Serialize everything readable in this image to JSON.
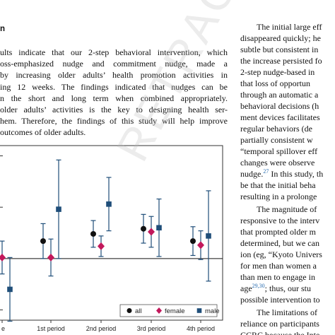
{
  "section_heading": "n",
  "left_paragraph": [
    "ults indicate that our 2-step behavioral intervention, which",
    "oss-emphasized nudge and commitment nudge, made a",
    "by increasing older adults’ health promotion activities in",
    "ing 12 weeks. The findings indicated that nudges can be",
    "n the short and long term when combined appropriately.",
    "older adults’ activities is the key to designing health ser-",
    "hem. Therefore, the findings of this study will help improve",
    "outcomes of older adults."
  ],
  "right_column": [
    {
      "t": "The initial large eff",
      "indent": true
    },
    {
      "t": "disappeared quickly; he"
    },
    {
      "t": "subtle but consistent in"
    },
    {
      "t": "the increase persisted fo"
    },
    {
      "t": "2-step nudge-based in"
    },
    {
      "t": "that loss of opportun"
    },
    {
      "t": "through an automatic a"
    },
    {
      "t": "behavioral decisions (h"
    },
    {
      "t": "ment devices facilitates"
    },
    {
      "t": "regular behaviors (de"
    },
    {
      "t": "partially consistent w"
    },
    {
      "t": "“temporal spillover eff"
    },
    {
      "t": "changes were observe"
    },
    {
      "t": "nudge.",
      "ref": "27",
      "after": " In this study, th"
    },
    {
      "t": "be that the initial beha"
    },
    {
      "t": "resulting in a prolonge"
    },
    {
      "t": "The magnitude of",
      "indent": true,
      "gap": true
    },
    {
      "t": "responsive to the interv"
    },
    {
      "t": "that prompted older m"
    },
    {
      "t": "determined, but we can"
    },
    {
      "t": "ion (eg, “Kyoto Univers"
    },
    {
      "t": "for men than women a"
    },
    {
      "t": "than men to engage in"
    },
    {
      "t": "age",
      "ref": "29,30",
      "after": "; thus, our stu"
    },
    {
      "t": "possible intervention to"
    },
    {
      "t": "The limitations of",
      "indent": true,
      "gap": true
    },
    {
      "t": "reliance on participants"
    },
    {
      "t": "CCRC because the Inte"
    }
  ],
  "watermark_text": "RETRACTED",
  "colors": {
    "all": "#111111",
    "female": "#c2185b",
    "male": "#1f4e79",
    "line": "#1f4e79"
  },
  "chart_data": {
    "type": "scatter",
    "categories": [
      "e",
      "1st period",
      "2nd period",
      "3rd period",
      "4th period"
    ],
    "ylim": [
      -0.6,
      1.1
    ],
    "baseline": 0,
    "legend": {
      "position": "bottom-right",
      "entries": [
        "all",
        "female",
        "male"
      ]
    },
    "series": [
      {
        "name": "all",
        "marker": "circle",
        "values": [
          0.02,
          0.17,
          0.24,
          0.29,
          0.17
        ],
        "lower": [
          -0.1,
          0.0,
          0.11,
          0.15,
          0.03
        ],
        "upper": [
          0.14,
          0.34,
          0.37,
          0.43,
          0.31
        ]
      },
      {
        "name": "female",
        "marker": "diamond",
        "values": [
          0.01,
          0.01,
          0.12,
          0.26,
          0.13
        ],
        "lower": [
          -0.15,
          -0.17,
          0.02,
          0.11,
          -0.01
        ],
        "upper": [
          0.17,
          0.19,
          0.22,
          0.41,
          0.27
        ]
      },
      {
        "name": "male",
        "marker": "square",
        "values": [
          -0.3,
          0.48,
          0.53,
          0.3,
          0.22
        ],
        "lower": [
          -0.61,
          0.0,
          0.27,
          0.02,
          -0.22
        ],
        "upper": [
          0.01,
          0.96,
          0.79,
          0.58,
          0.66
        ]
      }
    ]
  }
}
